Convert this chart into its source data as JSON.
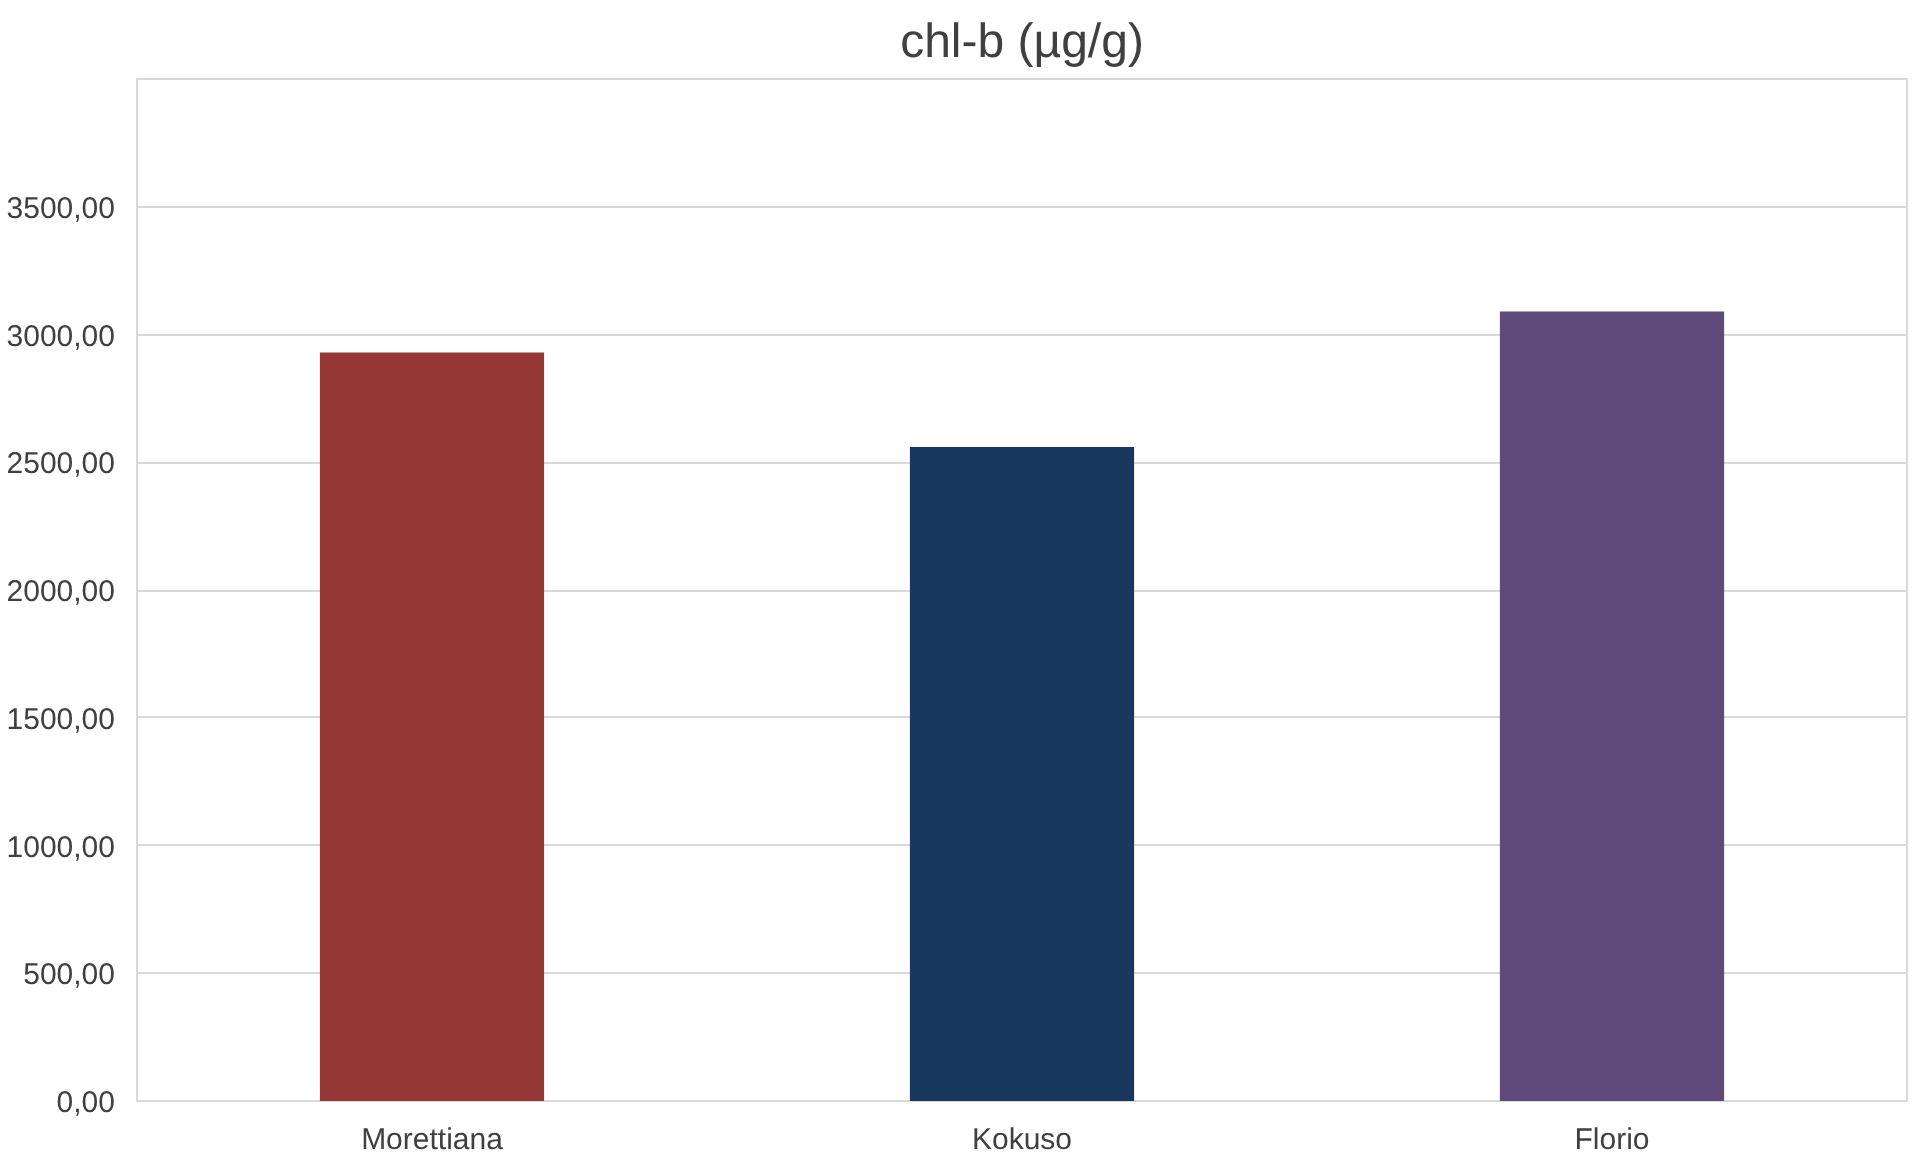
{
  "chart_data": {
    "type": "bar",
    "title": "chl-b (µg/g)",
    "categories": [
      "Morettiana",
      "Kokuso",
      "Florio"
    ],
    "values": [
      2930,
      2560,
      3090
    ],
    "colors": [
      "#953735",
      "#17375e",
      "#604a7b"
    ],
    "ylim": [
      0,
      4000
    ],
    "yticks": [
      {
        "value": 0,
        "label": "0,00"
      },
      {
        "value": 500,
        "label": "500,00"
      },
      {
        "value": 1000,
        "label": "1000,00"
      },
      {
        "value": 1500,
        "label": "1500,00"
      },
      {
        "value": 2000,
        "label": "2000,00"
      },
      {
        "value": 2500,
        "label": "2500,00"
      },
      {
        "value": 3000,
        "label": "3000,00"
      },
      {
        "value": 3500,
        "label": "3500,00"
      },
      {
        "value": 4000,
        "label": null
      }
    ],
    "grid": "y"
  }
}
